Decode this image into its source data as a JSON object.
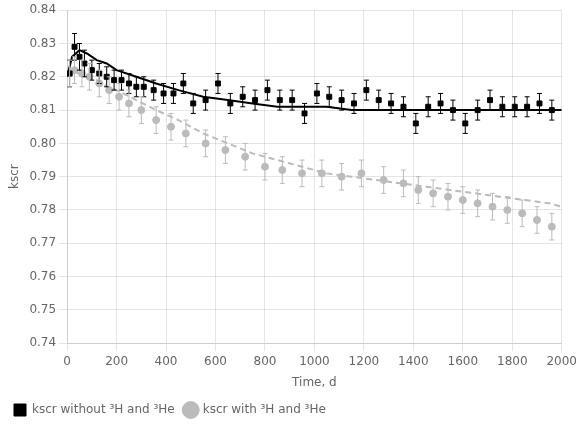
{
  "chart_data": {
    "type": "scatter",
    "xlabel": "Time, d",
    "ylabel": "kscr",
    "xlim": [
      0,
      2000
    ],
    "ylim": [
      0.74,
      0.84
    ],
    "xticks": [
      0,
      200,
      400,
      600,
      800,
      1000,
      1200,
      1400,
      1600,
      1800,
      2000
    ],
    "yticks": [
      0.74,
      0.75,
      0.76,
      0.77,
      0.78,
      0.79,
      {
        "value": 0.8,
        "label": "0.80"
      },
      0.81,
      0.82,
      0.83,
      0.84
    ],
    "grid": true,
    "legend": "lower left",
    "series": [
      {
        "name": "kscr without ³H and ³He",
        "type": "scatter",
        "marker": "square",
        "color": "#000000",
        "x": [
          10,
          30,
          50,
          70,
          100,
          130,
          160,
          190,
          220,
          250,
          280,
          310,
          350,
          390,
          430,
          470,
          510,
          560,
          610,
          660,
          710,
          760,
          810,
          860,
          910,
          960,
          1010,
          1060,
          1110,
          1160,
          1210,
          1260,
          1310,
          1360,
          1410,
          1460,
          1510,
          1560,
          1610,
          1660,
          1710,
          1760,
          1810,
          1860,
          1910,
          1960
        ],
        "values": [
          0.821,
          0.829,
          0.826,
          0.824,
          0.822,
          0.821,
          0.82,
          0.819,
          0.819,
          0.818,
          0.817,
          0.817,
          0.816,
          0.815,
          0.815,
          0.818,
          0.812,
          0.813,
          0.818,
          0.812,
          0.814,
          0.813,
          0.816,
          0.813,
          0.813,
          0.809,
          0.815,
          0.814,
          0.813,
          0.812,
          0.816,
          0.813,
          0.812,
          0.811,
          0.806,
          0.811,
          0.812,
          0.81,
          0.806,
          0.81,
          0.813,
          0.811,
          0.811,
          0.811,
          0.812,
          0.81
        ],
        "errors": [
          0.004,
          0.004,
          0.004,
          0.004,
          0.003,
          0.003,
          0.003,
          0.003,
          0.003,
          0.003,
          0.003,
          0.003,
          0.003,
          0.003,
          0.003,
          0.003,
          0.003,
          0.003,
          0.003,
          0.003,
          0.003,
          0.003,
          0.003,
          0.003,
          0.003,
          0.003,
          0.003,
          0.003,
          0.003,
          0.003,
          0.003,
          0.003,
          0.003,
          0.003,
          0.003,
          0.003,
          0.003,
          0.003,
          0.003,
          0.003,
          0.003,
          0.003,
          0.003,
          0.003,
          0.003,
          0.003
        ]
      },
      {
        "type": "line",
        "line_style": "solid",
        "color": "#000000",
        "x": [
          0,
          20,
          50,
          80,
          120,
          160,
          200,
          280,
          360,
          450,
          550,
          650,
          750,
          850,
          950,
          1050,
          1150,
          1250,
          1350,
          1450,
          1550,
          1650,
          1750,
          1850,
          1950,
          2000
        ],
        "values": [
          0.82,
          0.826,
          0.828,
          0.827,
          0.825,
          0.824,
          0.822,
          0.82,
          0.818,
          0.816,
          0.814,
          0.813,
          0.812,
          0.811,
          0.811,
          0.811,
          0.81,
          0.81,
          0.81,
          0.81,
          0.81,
          0.81,
          0.81,
          0.81,
          0.81,
          0.81
        ]
      },
      {
        "name": "kscr with ³H and ³He",
        "type": "scatter",
        "marker": "circle",
        "color": "#bbbbbb",
        "x": [
          10,
          30,
          60,
          90,
          130,
          170,
          210,
          250,
          300,
          360,
          420,
          480,
          560,
          640,
          720,
          800,
          870,
          950,
          1030,
          1110,
          1190,
          1280,
          1360,
          1420,
          1480,
          1540,
          1600,
          1660,
          1720,
          1780,
          1840,
          1900,
          1960
        ],
        "values": [
          0.821,
          0.822,
          0.821,
          0.82,
          0.818,
          0.816,
          0.814,
          0.812,
          0.81,
          0.807,
          0.805,
          0.803,
          0.8,
          0.798,
          0.796,
          0.793,
          0.792,
          0.791,
          0.791,
          0.79,
          0.791,
          0.789,
          0.788,
          0.786,
          0.785,
          0.784,
          0.783,
          0.782,
          0.781,
          0.78,
          0.779,
          0.777,
          0.775
        ],
        "errors": [
          0.004,
          0.004,
          0.004,
          0.004,
          0.004,
          0.004,
          0.004,
          0.004,
          0.004,
          0.004,
          0.004,
          0.004,
          0.004,
          0.004,
          0.004,
          0.004,
          0.004,
          0.004,
          0.004,
          0.004,
          0.004,
          0.004,
          0.004,
          0.004,
          0.004,
          0.004,
          0.004,
          0.004,
          0.004,
          0.004,
          0.004,
          0.004,
          0.004
        ]
      },
      {
        "type": "line",
        "line_style": "dashed",
        "color": "#bbbbbb",
        "x": [
          0,
          20,
          50,
          80,
          120,
          160,
          200,
          280,
          360,
          450,
          550,
          650,
          750,
          850,
          950,
          1050,
          1150,
          1250,
          1350,
          1450,
          1550,
          1650,
          1750,
          1850,
          1950,
          2000
        ],
        "values": [
          0.821,
          0.821,
          0.821,
          0.82,
          0.819,
          0.817,
          0.816,
          0.813,
          0.81,
          0.807,
          0.803,
          0.8,
          0.797,
          0.795,
          0.793,
          0.791,
          0.79,
          0.789,
          0.788,
          0.787,
          0.786,
          0.785,
          0.784,
          0.783,
          0.782,
          0.781
        ]
      }
    ]
  }
}
